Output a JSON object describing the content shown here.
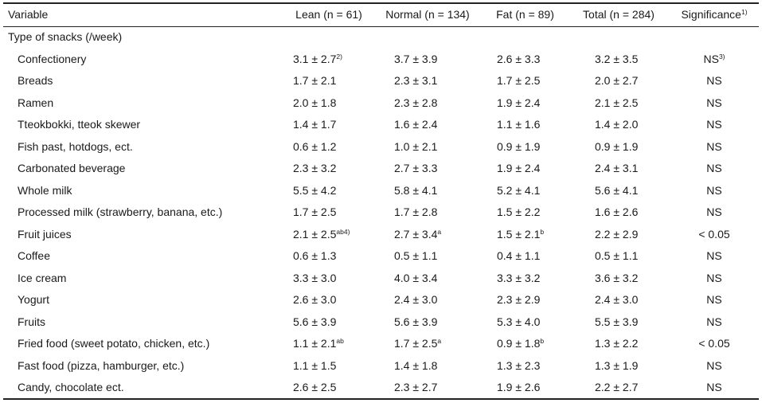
{
  "table": {
    "headers": {
      "variable": "Variable",
      "lean": "Lean (n = 61)",
      "normal": "Normal (n = 134)",
      "fat": "Fat (n = 89)",
      "total": "Total (n = 284)",
      "significance": "Significance",
      "significance_sup": "1)"
    },
    "section_label": "Type of snacks (/week)",
    "rows": [
      {
        "name": "Confectionery",
        "lean": "3.1 ± 2.7",
        "lean_sup": "2)",
        "normal": "3.7 ± 3.9",
        "normal_sup": "",
        "fat": "2.6 ± 3.3",
        "fat_sup": "",
        "total": "3.2 ± 3.5",
        "sig": "NS",
        "sig_sup": "3)"
      },
      {
        "name": "Breads",
        "lean": "1.7 ± 2.1",
        "lean_sup": "",
        "normal": "2.3 ± 3.1",
        "normal_sup": "",
        "fat": "1.7 ± 2.5",
        "fat_sup": "",
        "total": "2.0 ± 2.7",
        "sig": "NS",
        "sig_sup": ""
      },
      {
        "name": "Ramen",
        "lean": "2.0 ± 1.8",
        "lean_sup": "",
        "normal": "2.3 ± 2.8",
        "normal_sup": "",
        "fat": "1.9 ± 2.4",
        "fat_sup": "",
        "total": "2.1 ± 2.5",
        "sig": "NS",
        "sig_sup": ""
      },
      {
        "name": "Tteokbokki, tteok skewer",
        "lean": "1.4 ± 1.7",
        "lean_sup": "",
        "normal": "1.6 ± 2.4",
        "normal_sup": "",
        "fat": "1.1 ± 1.6",
        "fat_sup": "",
        "total": "1.4 ± 2.0",
        "sig": "NS",
        "sig_sup": ""
      },
      {
        "name": "Fish past, hotdogs, ect.",
        "lean": "0.6 ± 1.2",
        "lean_sup": "",
        "normal": "1.0 ± 2.1",
        "normal_sup": "",
        "fat": "0.9 ± 1.9",
        "fat_sup": "",
        "total": "0.9 ± 1.9",
        "sig": "NS",
        "sig_sup": ""
      },
      {
        "name": "Carbonated beverage",
        "lean": "2.3 ± 3.2",
        "lean_sup": "",
        "normal": "2.7 ± 3.3",
        "normal_sup": "",
        "fat": "1.9 ± 2.4",
        "fat_sup": "",
        "total": "2.4 ± 3.1",
        "sig": "NS",
        "sig_sup": ""
      },
      {
        "name": "Whole milk",
        "lean": "5.5 ± 4.2",
        "lean_sup": "",
        "normal": "5.8 ± 4.1",
        "normal_sup": "",
        "fat": "5.2 ± 4.1",
        "fat_sup": "",
        "total": "5.6 ± 4.1",
        "sig": "NS",
        "sig_sup": ""
      },
      {
        "name": "Processed milk (strawberry, banana, etc.)",
        "lean": "1.7 ± 2.5",
        "lean_sup": "",
        "normal": "1.7 ± 2.8",
        "normal_sup": "",
        "fat": "1.5 ± 2.2",
        "fat_sup": "",
        "total": "1.6 ± 2.6",
        "sig": "NS",
        "sig_sup": ""
      },
      {
        "name": "Fruit juices",
        "lean": "2.1 ± 2.5",
        "lean_sup": "ab4)",
        "normal": "2.7 ± 3.4",
        "normal_sup": "a",
        "fat": "1.5 ± 2.1",
        "fat_sup": "b",
        "total": "2.2 ± 2.9",
        "sig": "< 0.05",
        "sig_sup": ""
      },
      {
        "name": "Coffee",
        "lean": "0.6 ± 1.3",
        "lean_sup": "",
        "normal": "0.5 ± 1.1",
        "normal_sup": "",
        "fat": "0.4 ± 1.1",
        "fat_sup": "",
        "total": "0.5 ± 1.1",
        "sig": "NS",
        "sig_sup": ""
      },
      {
        "name": "Ice cream",
        "lean": "3.3 ± 3.0",
        "lean_sup": "",
        "normal": "4.0 ± 3.4",
        "normal_sup": "",
        "fat": "3.3 ± 3.2",
        "fat_sup": "",
        "total": "3.6 ± 3.2",
        "sig": "NS",
        "sig_sup": ""
      },
      {
        "name": "Yogurt",
        "lean": "2.6 ± 3.0",
        "lean_sup": "",
        "normal": "2.4 ± 3.0",
        "normal_sup": "",
        "fat": "2.3 ± 2.9",
        "fat_sup": "",
        "total": "2.4 ± 3.0",
        "sig": "NS",
        "sig_sup": ""
      },
      {
        "name": "Fruits",
        "lean": "5.6 ± 3.9",
        "lean_sup": "",
        "normal": "5.6 ± 3.9",
        "normal_sup": "",
        "fat": "5.3 ± 4.0",
        "fat_sup": "",
        "total": "5.5 ± 3.9",
        "sig": "NS",
        "sig_sup": ""
      },
      {
        "name": "Fried food (sweet potato, chicken, etc.)",
        "lean": "1.1 ± 2.1",
        "lean_sup": "ab",
        "normal": "1.7 ± 2.5",
        "normal_sup": "a",
        "fat": "0.9 ± 1.8",
        "fat_sup": "b",
        "total": "1.3 ± 2.2",
        "sig": "< 0.05",
        "sig_sup": ""
      },
      {
        "name": "Fast food (pizza, hamburger, etc.)",
        "lean": "1.1 ± 1.5",
        "lean_sup": "",
        "normal": "1.4 ± 1.8",
        "normal_sup": "",
        "fat": "1.3 ± 2.3",
        "fat_sup": "",
        "total": "1.3 ± 1.9",
        "sig": "NS",
        "sig_sup": ""
      },
      {
        "name": "Candy, chocolate ect.",
        "lean": "2.6 ± 2.5",
        "lean_sup": "",
        "normal": "2.3 ± 2.7",
        "normal_sup": "",
        "fat": "1.9 ± 2.6",
        "fat_sup": "",
        "total": "2.2 ± 2.7",
        "sig": "NS",
        "sig_sup": ""
      }
    ]
  }
}
